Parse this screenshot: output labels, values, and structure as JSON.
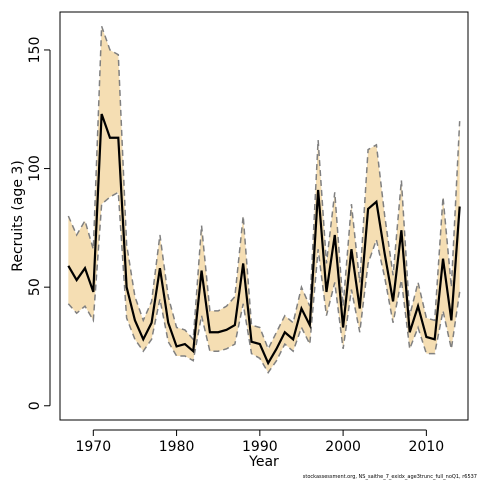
{
  "chart_data": {
    "type": "line",
    "xlabel": "Year",
    "ylabel": "Recruits (age 3)",
    "xlim": [
      1966,
      2015
    ],
    "ylim": [
      -6,
      166
    ],
    "xticks": [
      1970,
      1980,
      1990,
      2000,
      2010
    ],
    "yticks": [
      0,
      50,
      100,
      150
    ],
    "footnote": "stockassessment.org, NS_saithe_7_exidx_age3trunc_full_noQ1, r6537",
    "colors": {
      "band": "#f5deb3",
      "estimate": "#000000",
      "dashed": "#808080",
      "axis": "#000000"
    },
    "grid": false,
    "series": [
      {
        "x": [
          1967,
          1968,
          1969,
          1970,
          1971,
          1972,
          1973,
          1974,
          1975,
          1976,
          1977,
          1978,
          1979,
          1980,
          1981,
          1982,
          1983,
          1984,
          1985,
          1986,
          1987,
          1988,
          1989,
          1990,
          1991,
          1992,
          1993,
          1994,
          1995,
          1996,
          1997,
          1998,
          1999,
          2000,
          2001,
          2002,
          2003,
          2004,
          2005,
          2006,
          2007,
          2008,
          2009,
          2010,
          2011,
          2012,
          2013,
          2014
        ],
        "estimate": [
          59,
          53,
          58,
          48,
          123,
          113,
          113,
          50,
          36,
          28,
          35,
          58,
          35,
          25,
          26,
          23,
          57,
          31,
          31,
          32,
          34,
          60,
          27,
          26,
          18,
          24,
          31,
          28,
          41,
          34,
          91,
          48,
          72,
          33,
          66,
          41,
          83,
          86,
          64,
          44,
          74,
          31,
          42,
          29,
          28,
          62,
          36,
          84
        ],
        "lower": [
          43,
          39,
          42,
          36,
          85,
          88,
          90,
          37,
          28,
          23,
          28,
          45,
          27,
          21,
          21,
          19,
          38,
          23,
          23,
          24,
          26,
          43,
          22,
          20,
          14,
          19,
          26,
          23,
          33,
          26,
          66,
          38,
          52,
          24,
          49,
          31,
          60,
          70,
          54,
          35,
          53,
          24,
          33,
          22,
          22,
          40,
          24,
          48
        ],
        "upper": [
          80,
          72,
          78,
          66,
          160,
          150,
          148,
          68,
          46,
          36,
          44,
          72,
          46,
          33,
          32,
          28,
          76,
          40,
          40,
          42,
          46,
          80,
          34,
          33,
          24,
          31,
          38,
          35,
          50,
          42,
          112,
          60,
          90,
          42,
          85,
          52,
          108,
          110,
          80,
          55,
          95,
          38,
          52,
          37,
          36,
          88,
          50,
          120
        ]
      }
    ]
  }
}
